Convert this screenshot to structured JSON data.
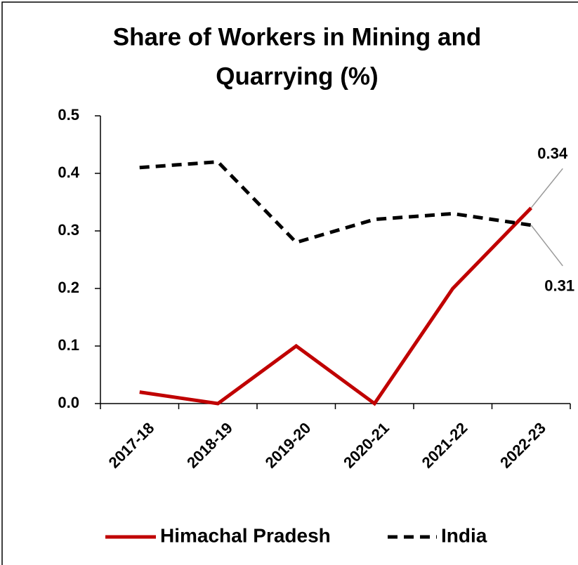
{
  "chart_data": {
    "type": "line",
    "title": "Share of Workers in Mining and Quarrying (%)",
    "title_lines": [
      "Share of Workers in Mining and",
      "Quarrying (%)"
    ],
    "categories": [
      "2017-18",
      "2018-19",
      "2019-20",
      "2020-21",
      "2021-22",
      "2022-23"
    ],
    "series": [
      {
        "name": "Himachal Pradesh",
        "color": "#c00000",
        "dash": false,
        "values": [
          0.02,
          0,
          0.1,
          0,
          0.2,
          0.34
        ],
        "value_labels": [
          null,
          null,
          null,
          null,
          null,
          "0.34"
        ]
      },
      {
        "name": "India",
        "color": "#000000",
        "dash": true,
        "values": [
          0.41,
          0.42,
          0.28,
          0.32,
          0.33,
          0.31
        ],
        "value_labels": [
          null,
          null,
          null,
          null,
          null,
          "0.31"
        ]
      }
    ],
    "ylim": [
      0,
      0.5
    ],
    "yticks": [
      {
        "value": 0,
        "label": "0.0"
      },
      0.1,
      0.2,
      0.3,
      0.4,
      0.5
    ],
    "grid": false,
    "legend": "bottom"
  }
}
